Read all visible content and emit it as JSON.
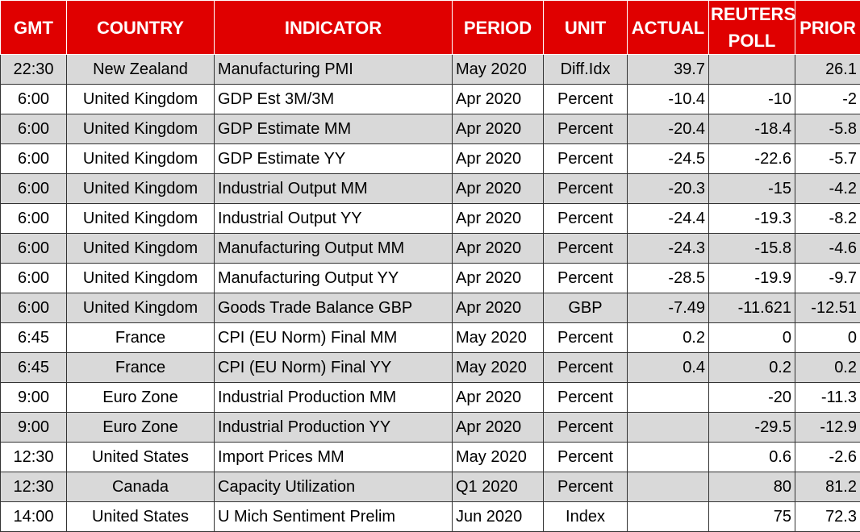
{
  "table": {
    "header": [
      "GMT",
      "COUNTRY",
      "INDICATOR",
      "PERIOD",
      "UNIT",
      "ACTUAL",
      "REUTERS POLL",
      "PRIOR"
    ],
    "rows": [
      [
        "22:30",
        "New Zealand",
        "Manufacturing PMI",
        "May 2020",
        "Diff.Idx",
        "39.7",
        null,
        "26.1"
      ],
      [
        "6:00",
        "United Kingdom",
        "GDP Est 3M/3M",
        "Apr 2020",
        "Percent",
        "-10.4",
        "-10",
        "-2"
      ],
      [
        "6:00",
        "United Kingdom",
        "GDP Estimate MM",
        "Apr 2020",
        "Percent",
        "-20.4",
        "-18.4",
        "-5.8"
      ],
      [
        "6:00",
        "United Kingdom",
        "GDP Estimate YY",
        "Apr 2020",
        "Percent",
        "-24.5",
        "-22.6",
        "-5.7"
      ],
      [
        "6:00",
        "United Kingdom",
        "Industrial Output MM",
        "Apr 2020",
        "Percent",
        "-20.3",
        "-15",
        "-4.2"
      ],
      [
        "6:00",
        "United Kingdom",
        "Industrial Output YY",
        "Apr 2020",
        "Percent",
        "-24.4",
        "-19.3",
        "-8.2"
      ],
      [
        "6:00",
        "United Kingdom",
        "Manufacturing Output MM",
        "Apr 2020",
        "Percent",
        "-24.3",
        "-15.8",
        "-4.6"
      ],
      [
        "6:00",
        "United Kingdom",
        "Manufacturing Output YY",
        "Apr 2020",
        "Percent",
        "-28.5",
        "-19.9",
        "-9.7"
      ],
      [
        "6:00",
        "United Kingdom",
        "Goods Trade Balance GBP",
        "Apr 2020",
        "GBP",
        "-7.49",
        "-11.621",
        "-12.51"
      ],
      [
        "6:45",
        "France",
        "CPI (EU Norm) Final MM",
        "May 2020",
        "Percent",
        "0.2",
        "0",
        "0"
      ],
      [
        "6:45",
        "France",
        "CPI (EU Norm) Final YY",
        "May 2020",
        "Percent",
        "0.4",
        "0.2",
        "0.2"
      ],
      [
        "9:00",
        "Euro Zone",
        "Industrial Production MM",
        "Apr 2020",
        "Percent",
        null,
        "-20",
        "-11.3"
      ],
      [
        "9:00",
        "Euro Zone",
        "Industrial Production YY",
        "Apr 2020",
        "Percent",
        null,
        "-29.5",
        "-12.9"
      ],
      [
        "12:30",
        "United States",
        "Import Prices MM",
        "May 2020",
        "Percent",
        null,
        "0.6",
        "-2.6"
      ],
      [
        "12:30",
        "Canada",
        "Capacity Utilization",
        "Q1 2020",
        "Percent",
        null,
        "80",
        "81.2"
      ],
      [
        "14:00",
        "United States",
        "U Mich Sentiment Prelim",
        "Jun 2020",
        "Index",
        null,
        "75",
        "72.3"
      ]
    ]
  }
}
